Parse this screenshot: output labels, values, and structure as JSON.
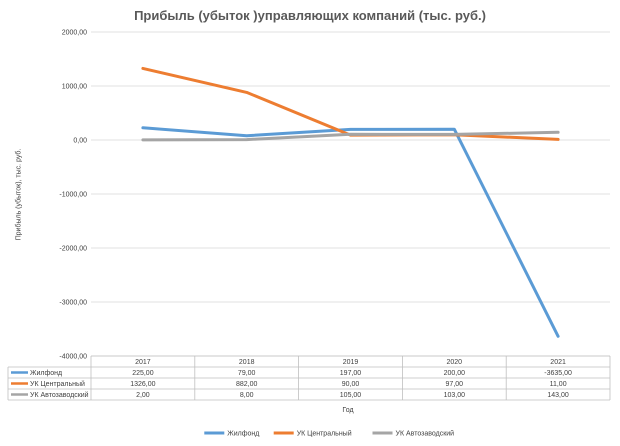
{
  "chart_data": {
    "type": "line",
    "title": "Прибыль (убыток )управляющих компаний (тыс. руб.)",
    "ylabel": "Прибыль (убыток), тыс. руб.",
    "xlabel": "Год",
    "categories": [
      "2017",
      "2018",
      "2019",
      "2020",
      "2021"
    ],
    "ylim": [
      -4000,
      2000
    ],
    "yticks": [
      2000,
      1000,
      0,
      -1000,
      -2000,
      -3000,
      -4000
    ],
    "ytick_labels": [
      "2000,00",
      "1000,00",
      "0,00",
      "-1000,00",
      "-2000,00",
      "-3000,00",
      "-4000,00"
    ],
    "grid": true,
    "legend": "bottom",
    "data_table": true,
    "series": [
      {
        "name": "Жилфонд",
        "color": "#5b9bd5",
        "values": [
          225,
          79,
          197,
          200,
          -3635
        ],
        "labels": [
          "225,00",
          "79,00",
          "197,00",
          "200,00",
          "-3635,00"
        ]
      },
      {
        "name": "УК Центральный",
        "color": "#ed7d31",
        "values": [
          1326,
          882,
          90,
          97,
          11
        ],
        "labels": [
          "1326,00",
          "882,00",
          "90,00",
          "97,00",
          "11,00"
        ]
      },
      {
        "name": "УК Автозаводский",
        "color": "#a5a5a5",
        "values": [
          2,
          8,
          105,
          103,
          143
        ],
        "labels": [
          "2,00",
          "8,00",
          "105,00",
          "103,00",
          "143,00"
        ]
      }
    ]
  }
}
